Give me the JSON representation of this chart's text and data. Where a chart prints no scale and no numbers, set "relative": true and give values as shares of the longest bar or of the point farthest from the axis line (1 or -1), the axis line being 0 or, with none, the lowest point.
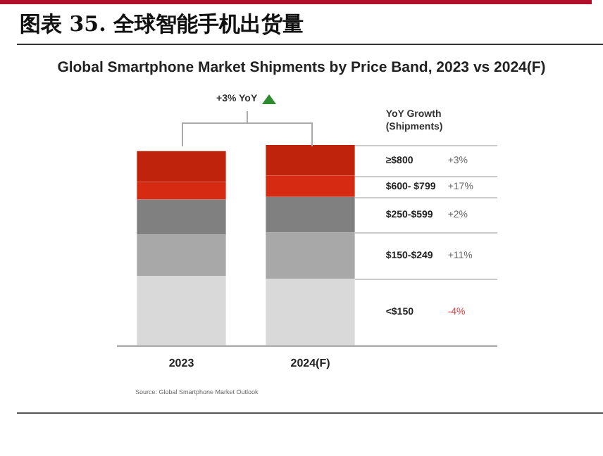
{
  "chart_data": {
    "type": "bar",
    "title": "图表 35.  全球智能手机出货量",
    "subtitle": "Global Smartphone Market Shipments by Price Band, 2023 vs 2024(F)",
    "legend_title": "YoY Growth\n(Shipments)",
    "categories": [
      "2023",
      "2024(F)"
    ],
    "stacked": true,
    "relative": true,
    "series": [
      {
        "name": "<$150",
        "color": "#d9d9d9",
        "values": [
          0.347,
          0.333
        ]
      },
      {
        "name": "$150-$249",
        "color": "#a8a8a8",
        "values": [
          0.205,
          0.23
        ]
      },
      {
        "name": "$250-$599",
        "color": "#808080",
        "values": [
          0.176,
          0.178
        ]
      },
      {
        "name": "$600- $799",
        "color": "#d62a12",
        "values": [
          0.088,
          0.106
        ]
      },
      {
        "name": "≥$800",
        "color": "#bf230b",
        "values": [
          0.153,
          0.153
        ]
      }
    ],
    "annotations": [
      "+3% YoY",
      "+3%",
      "+17%",
      "+2%",
      "+11%",
      "-4%",
      "Source: Global Smartphone Market Outlook"
    ]
  }
}
